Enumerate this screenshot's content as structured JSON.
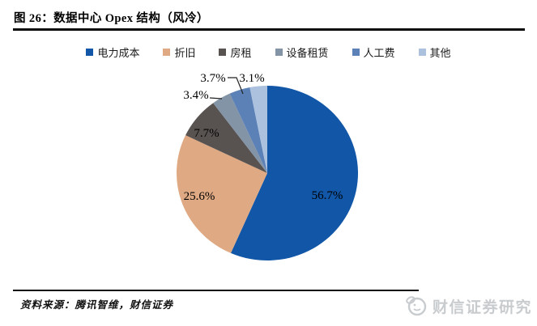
{
  "figure": {
    "title": "图 26：数据中心 Opex 结构（风冷）",
    "source": "资料来源：腾讯智维，财信证券",
    "watermark": "财信证券研究"
  },
  "chart_data": {
    "type": "pie",
    "title": "数据中心 Opex 结构（风冷）",
    "legend_position": "top",
    "label_color": "#000000",
    "slices": [
      {
        "label": "电力成本",
        "value": 56.7,
        "display": "56.7%",
        "color": "#1156A7"
      },
      {
        "label": "折旧",
        "value": 25.6,
        "display": "25.6%",
        "color": "#DEA983"
      },
      {
        "label": "房租",
        "value": 7.7,
        "display": "7.7%",
        "color": "#585350"
      },
      {
        "label": "设备租赁",
        "value": 3.4,
        "display": "3.4%",
        "color": "#8494A7"
      },
      {
        "label": "人工费",
        "value": 3.7,
        "display": "3.7%",
        "color": "#5C81B6"
      },
      {
        "label": "其他",
        "value": 3.1,
        "display": "3.1%",
        "color": "#ACC1DE"
      }
    ]
  }
}
